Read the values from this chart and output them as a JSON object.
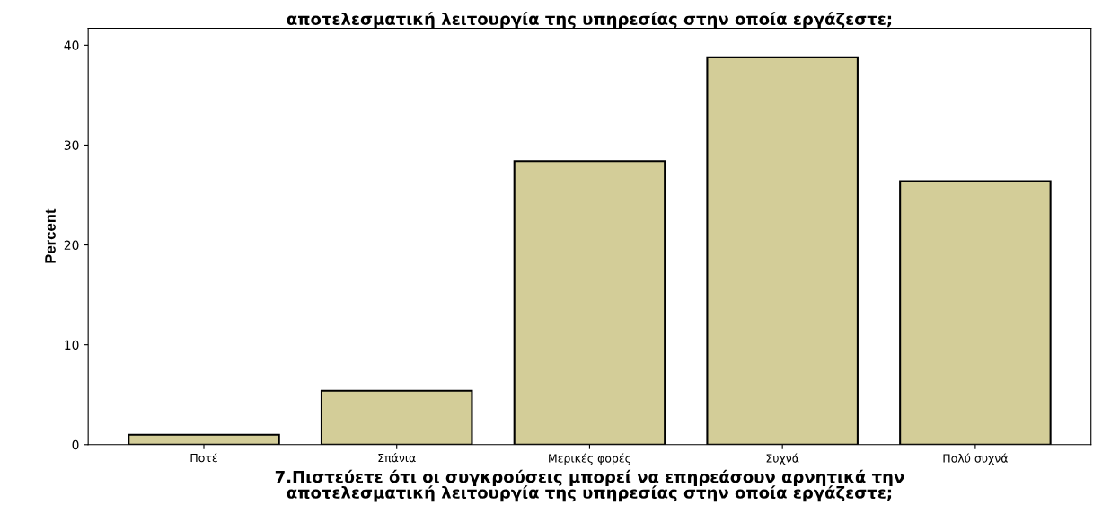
{
  "chart_data": {
    "type": "bar",
    "title": "αποτελεσματική λειτουργία της υπηρεσίας στην οποία εργάζεστε;",
    "categories": [
      "Ποτέ",
      "Σπάνια",
      "Μερικές φορές",
      "Συχνά",
      "Πολύ συχνά"
    ],
    "values": [
      1.0,
      5.4,
      28.4,
      38.8,
      26.4
    ],
    "color": "#d3cd98",
    "xlabel": "7.Πιστεύετε ότι οι συγκρούσεις μπορεί να επηρεάσουν αρνητικά την\nαποτελεσματική λειτουργία της υπηρεσίας στην οποία εργάζεστε;",
    "ylabel": "Percent",
    "ylim": [
      0,
      41.7
    ],
    "yticks": [
      0,
      10,
      20,
      30,
      40
    ],
    "grid": false
  }
}
